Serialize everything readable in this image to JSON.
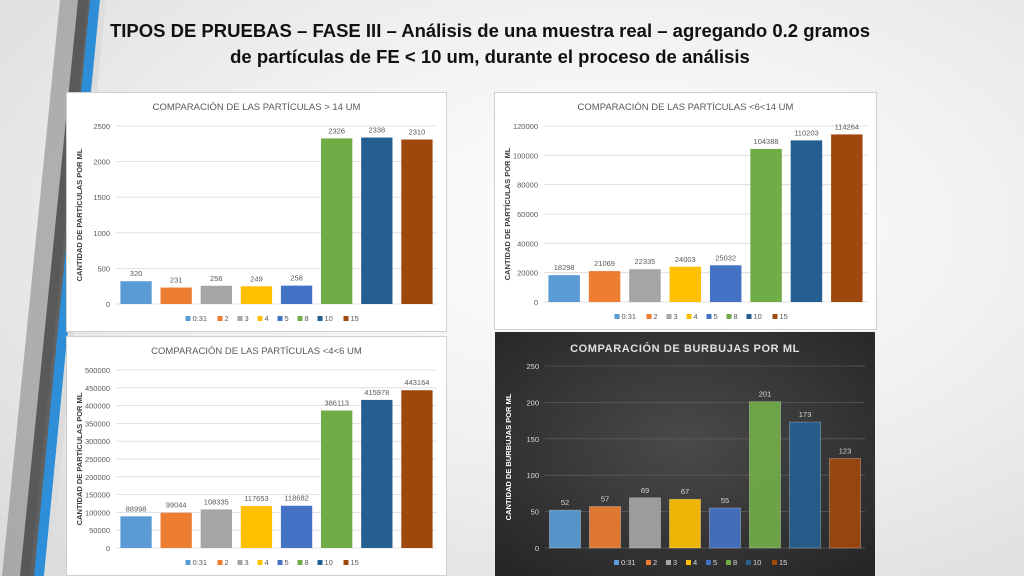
{
  "slide": {
    "title_line1": "TIPOS DE PRUEBAS – FASE III – Análisis de una muestra real – agregando 0.2 gramos",
    "title_line2": "de partículas de FE < 10 um, durante el proceso de análisis"
  },
  "chart_data": [
    {
      "type": "bar",
      "title": "COMPARACIÓN DE LAS PARTÍCULAS > 14 UM",
      "ylabel": "CANTIDAD DE PARTÍCULAS POR ML",
      "xlabel": "",
      "categories": [
        "0:31",
        "2",
        "3",
        "4",
        "5",
        "8",
        "10",
        "15"
      ],
      "values": [
        320,
        231,
        256,
        249,
        258,
        2326,
        2338,
        2310
      ],
      "colors": [
        "#5b9bd5",
        "#ed7d31",
        "#a5a5a5",
        "#ffc000",
        "#4472c4",
        "#70ad47",
        "#255e91",
        "#9e480e"
      ],
      "ylim": [
        0,
        2500
      ],
      "yticks": [
        0,
        500,
        1000,
        1500,
        2000,
        2500
      ],
      "ytick_labels": [
        "0",
        "500",
        "1000",
        "1500",
        "2000",
        "2500"
      ],
      "data_labels": [
        "320",
        "231",
        "256",
        "249",
        "258",
        "2326",
        "2338",
        "2310"
      ],
      "legend": "bottom",
      "theme": "light"
    },
    {
      "type": "bar",
      "title": "COMPARACIÓN DE LAS PARTÍCULAS <6<14 UM",
      "ylabel": "CANTIDAD DE PARTÍCULAS POR ML",
      "xlabel": "",
      "categories": [
        "0:31",
        "2",
        "3",
        "4",
        "5",
        "8",
        "10",
        "15"
      ],
      "values": [
        18298,
        21069,
        22335,
        24003,
        25032,
        104388,
        110203,
        114264
      ],
      "colors": [
        "#5b9bd5",
        "#ed7d31",
        "#a5a5a5",
        "#ffc000",
        "#4472c4",
        "#70ad47",
        "#255e91",
        "#9e480e"
      ],
      "ylim": [
        0,
        120000
      ],
      "yticks": [
        0,
        20000,
        40000,
        60000,
        80000,
        100000,
        120000
      ],
      "ytick_labels": [
        "0",
        "20000",
        "40000",
        "60000",
        "80000",
        "100000",
        "120000"
      ],
      "data_labels": [
        "18298",
        "21069",
        "22335",
        "24003",
        "25032",
        "104388",
        "110203",
        "114264"
      ],
      "legend": "bottom",
      "theme": "light"
    },
    {
      "type": "bar",
      "title": "COMPARACIÓN DE LAS PARTÍCULAS <4<6 UM",
      "ylabel": "CANTIDAD DE PARTÍCULAS POR ML",
      "xlabel": "",
      "categories": [
        "0:31",
        "2",
        "3",
        "4",
        "5",
        "8",
        "10",
        "15"
      ],
      "values": [
        88998,
        99044,
        108335,
        117653,
        118682,
        386113,
        415978,
        443164
      ],
      "colors": [
        "#5b9bd5",
        "#ed7d31",
        "#a5a5a5",
        "#ffc000",
        "#4472c4",
        "#70ad47",
        "#255e91",
        "#9e480e"
      ],
      "ylim": [
        0,
        500000
      ],
      "yticks": [
        0,
        50000,
        100000,
        150000,
        200000,
        250000,
        300000,
        350000,
        400000,
        450000,
        500000
      ],
      "ytick_labels": [
        "0",
        "50000",
        "100000",
        "150000",
        "200000",
        "250000",
        "300000",
        "350000",
        "400000",
        "450000",
        "500000"
      ],
      "data_labels": [
        "88998",
        "99044",
        "108335",
        "117653",
        "118682",
        "386113",
        "415978",
        "443164"
      ],
      "legend": "bottom",
      "theme": "light"
    },
    {
      "type": "bar",
      "title": "COMPARACIÓN DE BURBUJAS POR ML",
      "ylabel": "CANTIDAD DE BURBUJAS POR ML",
      "xlabel": "",
      "categories": [
        "0:31",
        "2",
        "3",
        "4",
        "5",
        "8",
        "10",
        "15"
      ],
      "values": [
        52,
        57,
        69,
        67,
        55,
        201,
        173,
        123
      ],
      "colors": [
        "#5b9bd5",
        "#ed7d31",
        "#a5a5a5",
        "#ffc000",
        "#4472c4",
        "#70ad47",
        "#255e91",
        "#9e480e"
      ],
      "ylim": [
        0,
        250
      ],
      "yticks": [
        0,
        50,
        100,
        150,
        200,
        250
      ],
      "ytick_labels": [
        "0",
        "50",
        "100",
        "150",
        "200",
        "250"
      ],
      "data_labels": [
        "52",
        "57",
        "69",
        "67",
        "55",
        "201",
        "173",
        "123"
      ],
      "legend": "bottom",
      "theme": "dark"
    }
  ]
}
